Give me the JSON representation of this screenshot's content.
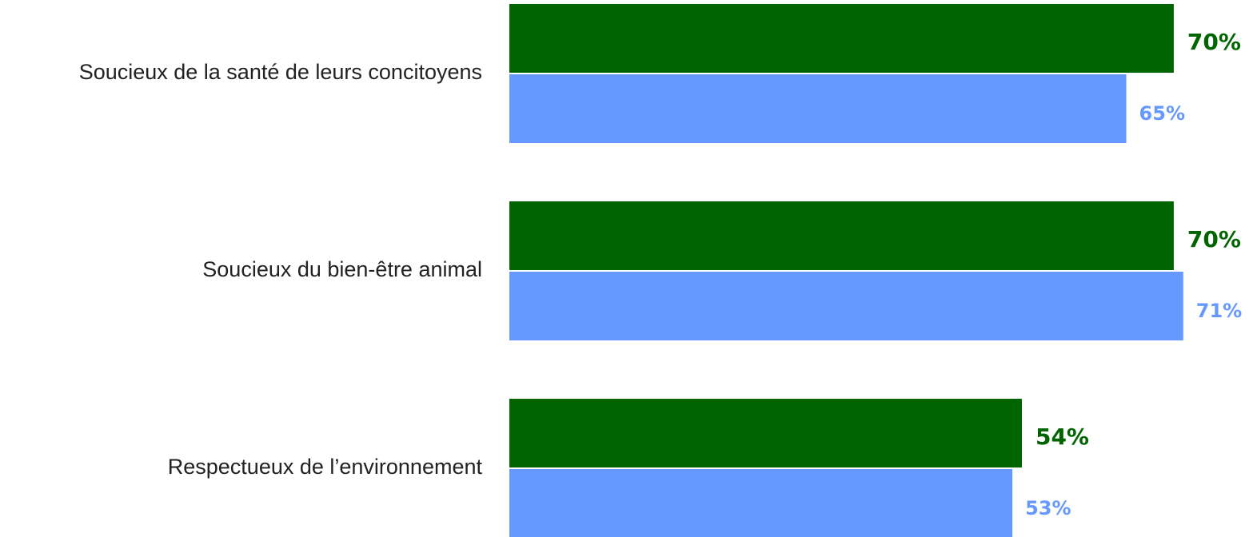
{
  "chart_data": {
    "type": "bar",
    "orientation": "horizontal",
    "categories": [
      "Soucieux de la santé de leurs concitoyens",
      "Soucieux du bien-être animal",
      "Respectueux de l’environnement"
    ],
    "series": [
      {
        "color": "#006400",
        "values": [
          70,
          70,
          54
        ],
        "labels": [
          "70%",
          "70%",
          "54%"
        ]
      },
      {
        "color": "#6699FF",
        "values": [
          65,
          71,
          53
        ],
        "labels": [
          "65%",
          "71%",
          "53%"
        ]
      }
    ],
    "xlim": [
      0,
      71
    ],
    "grid": false,
    "legend": "none"
  }
}
